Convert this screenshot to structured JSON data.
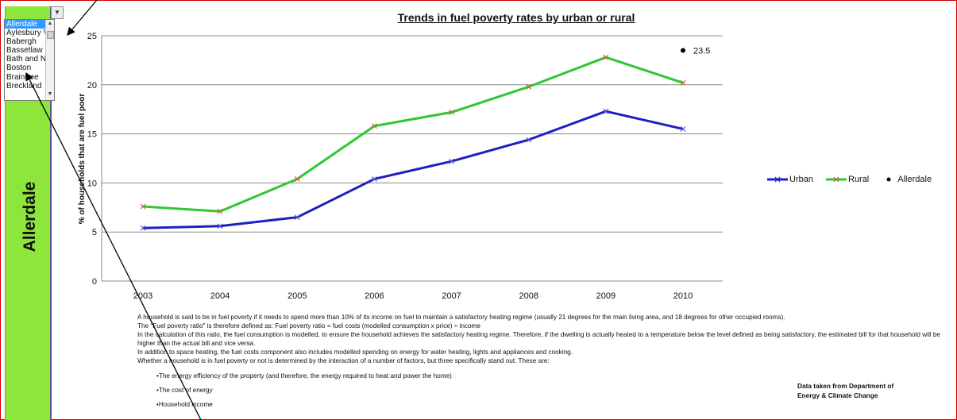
{
  "sidebar": {
    "area_label": "Allerdale"
  },
  "area_list": {
    "items": [
      "Allerdale",
      "Aylesbury Vale",
      "Babergh",
      "Bassetlaw",
      "Bath and North East Somerset",
      "Boston",
      "Braintree",
      "Breckland"
    ],
    "selected": "Allerdale"
  },
  "chart_data": {
    "type": "line",
    "title": "Trends in fuel poverty rates by urban or rural",
    "xlabel": "",
    "ylabel": "% of households that are fuel poor",
    "categories": [
      "2003",
      "2004",
      "2005",
      "2006",
      "2007",
      "2008",
      "2009",
      "2010"
    ],
    "ylim": [
      0,
      25
    ],
    "yticks": [
      "0",
      "5",
      "10",
      "15",
      "20",
      "25"
    ],
    "grid": true,
    "legend_position": "right",
    "series": [
      {
        "name": "Urban",
        "color": "#1f1fbf",
        "marker": "x",
        "values": [
          5.4,
          5.6,
          6.5,
          10.4,
          12.2,
          14.4,
          17.3,
          15.5
        ]
      },
      {
        "name": "Rural",
        "color": "#2ec82e",
        "marker": "x",
        "values": [
          7.6,
          7.1,
          10.4,
          15.8,
          17.2,
          19.8,
          22.8,
          20.2
        ]
      },
      {
        "name": "Allerdale",
        "color": "#000000",
        "marker": "dot",
        "points": [
          {
            "x": "2010",
            "y": 23.5
          }
        ],
        "label": "23.5"
      }
    ]
  },
  "notes": {
    "paragraphs": [
      "A household is said to be in fuel poverty if it needs to spend more than 10% of its income on fuel to maintain a satisfactory heating regime (usually 21 degrees for the main living area, and 18 degrees for other occupied rooms).",
      "The \"Fuel poverty ratio\" is therefore defined as: Fuel poverty ratio = fuel costs (modelled consumption x price) ÷ income",
      "In the calculation of this ratio, the fuel consumption is modelled, to ensure the household achieves the satisfactory heating regime. Therefore, if the dwelling is actually heated to a temperature below the level defined as being satisfactory, the estimated bill for that household will be higher than the actual bill and vice versa.",
      "In addition to space heating, the fuel costs component also includes modelled spending on energy for water heating, lights and appliances and cooking.",
      "Whether a household is in fuel poverty or not is determined by the interaction of a number of factors, but three specifically stand out. These are:"
    ],
    "bullets": [
      "The energy efficiency of the property (and therefore, the energy required to heat and power the home)",
      "The cost of energy",
      "Household income"
    ]
  },
  "source": {
    "line1": "Data taken from Department of",
    "line2": "Energy & Climate Change"
  }
}
